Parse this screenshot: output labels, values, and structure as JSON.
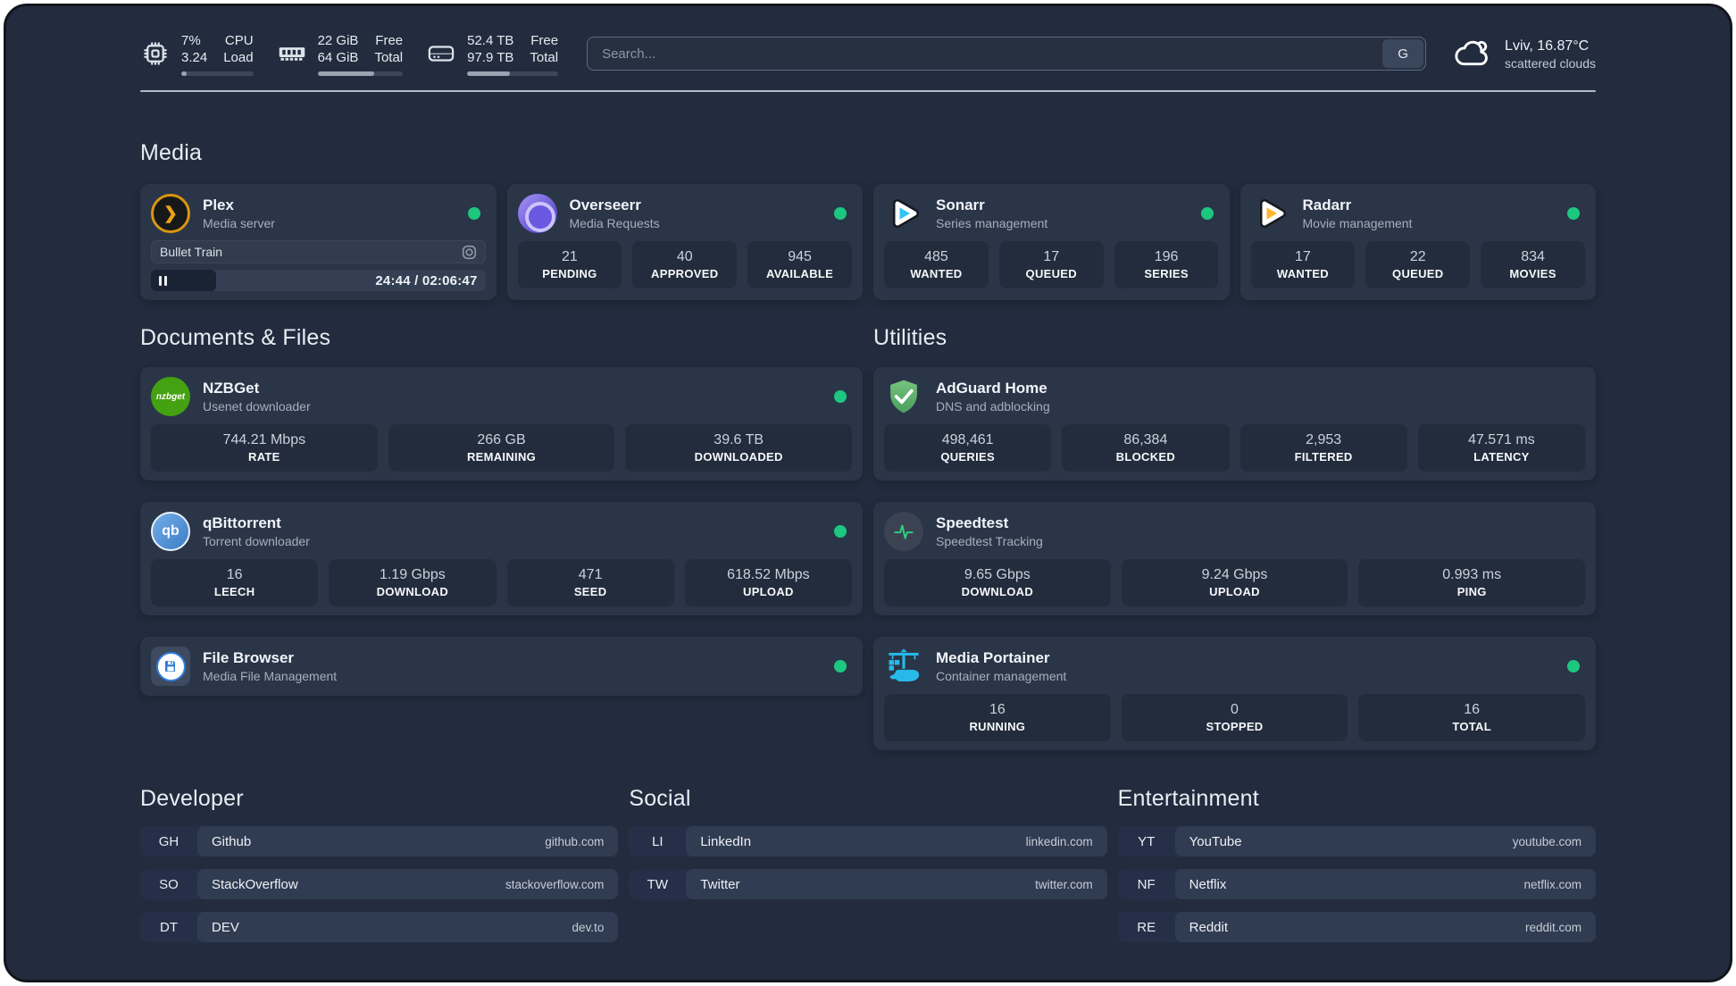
{
  "topbar": {
    "cpu": {
      "value": "7%",
      "load": "3.24",
      "label_top": "CPU",
      "label_bottom": "Load",
      "bar": 7
    },
    "ram": {
      "free": "22 GiB",
      "total": "64 GiB",
      "label_top": "Free",
      "label_bottom": "Total",
      "bar": 66
    },
    "disk": {
      "free": "52.4 TB",
      "total": "97.9 TB",
      "label_top": "Free",
      "label_bottom": "Total",
      "bar": 47
    },
    "search": {
      "placeholder": "Search...",
      "button_label": "G"
    },
    "weather": {
      "location": "Lviv, 16.87°C",
      "condition": "scattered clouds",
      "icon": "cloud-icon"
    }
  },
  "sections": {
    "media": "Media",
    "documents": "Documents & Files",
    "utilities": "Utilities",
    "developer": "Developer",
    "social": "Social",
    "entertainment": "Entertainment"
  },
  "apps": {
    "plex": {
      "name": "Plex",
      "desc": "Media server",
      "icon": "plex-icon",
      "online": true,
      "now_playing": "Bullet Train",
      "elapsed": "24:44 / 02:06:47",
      "progress": 19.5
    },
    "overseerr": {
      "name": "Overseerr",
      "desc": "Media Requests",
      "icon": "overseerr-icon",
      "online": true,
      "stats": [
        {
          "value": "21",
          "label": "PENDING"
        },
        {
          "value": "40",
          "label": "APPROVED"
        },
        {
          "value": "945",
          "label": "AVAILABLE"
        }
      ]
    },
    "sonarr": {
      "name": "Sonarr",
      "desc": "Series management",
      "icon": "sonarr-icon",
      "online": true,
      "stats": [
        {
          "value": "485",
          "label": "WANTED"
        },
        {
          "value": "17",
          "label": "QUEUED"
        },
        {
          "value": "196",
          "label": "SERIES"
        }
      ]
    },
    "radarr": {
      "name": "Radarr",
      "desc": "Movie management",
      "icon": "radarr-icon",
      "online": true,
      "stats": [
        {
          "value": "17",
          "label": "WANTED"
        },
        {
          "value": "22",
          "label": "QUEUED"
        },
        {
          "value": "834",
          "label": "MOVIES"
        }
      ]
    },
    "nzbget": {
      "name": "NZBGet",
      "desc": "Usenet downloader",
      "icon": "nzbget-icon",
      "online": true,
      "stats": [
        {
          "value": "744.21 Mbps",
          "label": "RATE"
        },
        {
          "value": "266 GB",
          "label": "REMAINING"
        },
        {
          "value": "39.6 TB",
          "label": "DOWNLOADED"
        }
      ]
    },
    "qbittorrent": {
      "name": "qBittorrent",
      "desc": "Torrent downloader",
      "icon": "qbittorrent-icon",
      "online": true,
      "stats": [
        {
          "value": "16",
          "label": "LEECH"
        },
        {
          "value": "1.19 Gbps",
          "label": "DOWNLOAD"
        },
        {
          "value": "471",
          "label": "SEED"
        },
        {
          "value": "618.52 Mbps",
          "label": "UPLOAD"
        }
      ]
    },
    "filebrowser": {
      "name": "File Browser",
      "desc": "Media File Management",
      "icon": "filebrowser-icon",
      "online": true
    },
    "adguard": {
      "name": "AdGuard Home",
      "desc": "DNS and adblocking",
      "icon": "adguard-icon",
      "stats": [
        {
          "value": "498,461",
          "label": "QUERIES"
        },
        {
          "value": "86,384",
          "label": "BLOCKED"
        },
        {
          "value": "2,953",
          "label": "FILTERED"
        },
        {
          "value": "47.571 ms",
          "label": "LATENCY"
        }
      ]
    },
    "speedtest": {
      "name": "Speedtest",
      "desc": "Speedtest Tracking",
      "icon": "speedtest-icon",
      "stats": [
        {
          "value": "9.65 Gbps",
          "label": "DOWNLOAD"
        },
        {
          "value": "9.24 Gbps",
          "label": "UPLOAD"
        },
        {
          "value": "0.993 ms",
          "label": "PING"
        }
      ]
    },
    "portainer": {
      "name": "Media Portainer",
      "desc": "Container management",
      "icon": "portainer-icon",
      "online": true,
      "stats": [
        {
          "value": "16",
          "label": "RUNNING"
        },
        {
          "value": "0",
          "label": "STOPPED"
        },
        {
          "value": "16",
          "label": "TOTAL"
        }
      ]
    }
  },
  "bookmarks": {
    "developer": [
      {
        "abbr": "GH",
        "name": "Github",
        "url": "github.com"
      },
      {
        "abbr": "SO",
        "name": "StackOverflow",
        "url": "stackoverflow.com"
      },
      {
        "abbr": "DT",
        "name": "DEV",
        "url": "dev.to"
      }
    ],
    "social": [
      {
        "abbr": "LI",
        "name": "LinkedIn",
        "url": "linkedin.com"
      },
      {
        "abbr": "TW",
        "name": "Twitter",
        "url": "twitter.com"
      }
    ],
    "entertainment": [
      {
        "abbr": "YT",
        "name": "YouTube",
        "url": "youtube.com"
      },
      {
        "abbr": "NF",
        "name": "Netflix",
        "url": "netflix.com"
      },
      {
        "abbr": "RE",
        "name": "Reddit",
        "url": "reddit.com"
      }
    ]
  },
  "colors": {
    "online_dot": "#1dc77f",
    "background": "#222c3e",
    "card": "#2a3548",
    "tile": "#222c3c",
    "accent_blue": "#35c4f2",
    "accent_yellow": "#ffb531"
  }
}
